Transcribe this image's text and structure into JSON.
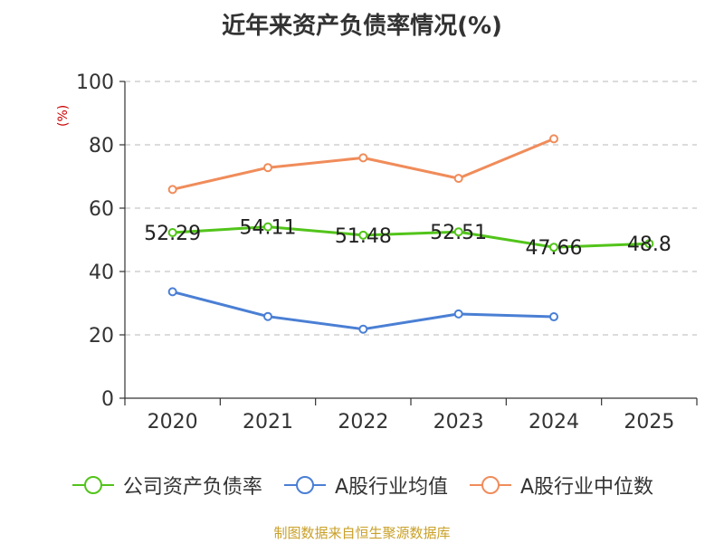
{
  "title": "近年来资产负债率情况(%)",
  "unit_label": "(%)",
  "source": "制图数据来自恒生聚源数据库",
  "chart_data": {
    "type": "line",
    "title": "近年来资产负债率情况(%)",
    "ylabel": "(%)",
    "xlabel": "",
    "categories": [
      "2020",
      "2021",
      "2022",
      "2023",
      "2024",
      "2025"
    ],
    "ylim": [
      0,
      100
    ],
    "yticks": [
      0,
      20,
      40,
      60,
      80,
      100
    ],
    "grid": true,
    "legend_position": "bottom",
    "series": [
      {
        "name": "公司资产负债率",
        "color": "#52c41a",
        "values": [
          52.29,
          54.11,
          51.48,
          52.51,
          47.66,
          48.8
        ],
        "labels": [
          "52.29",
          "54.11",
          "51.48",
          "52.51",
          "47.66",
          "48.8"
        ]
      },
      {
        "name": "A股行业均值",
        "color": "#4a7fd4",
        "values": [
          33.6,
          25.8,
          21.8,
          26.6,
          25.7,
          null
        ]
      },
      {
        "name": "A股行业中位数",
        "color": "#f08c5a",
        "values": [
          65.9,
          72.8,
          75.9,
          69.4,
          81.9,
          null
        ]
      }
    ]
  }
}
